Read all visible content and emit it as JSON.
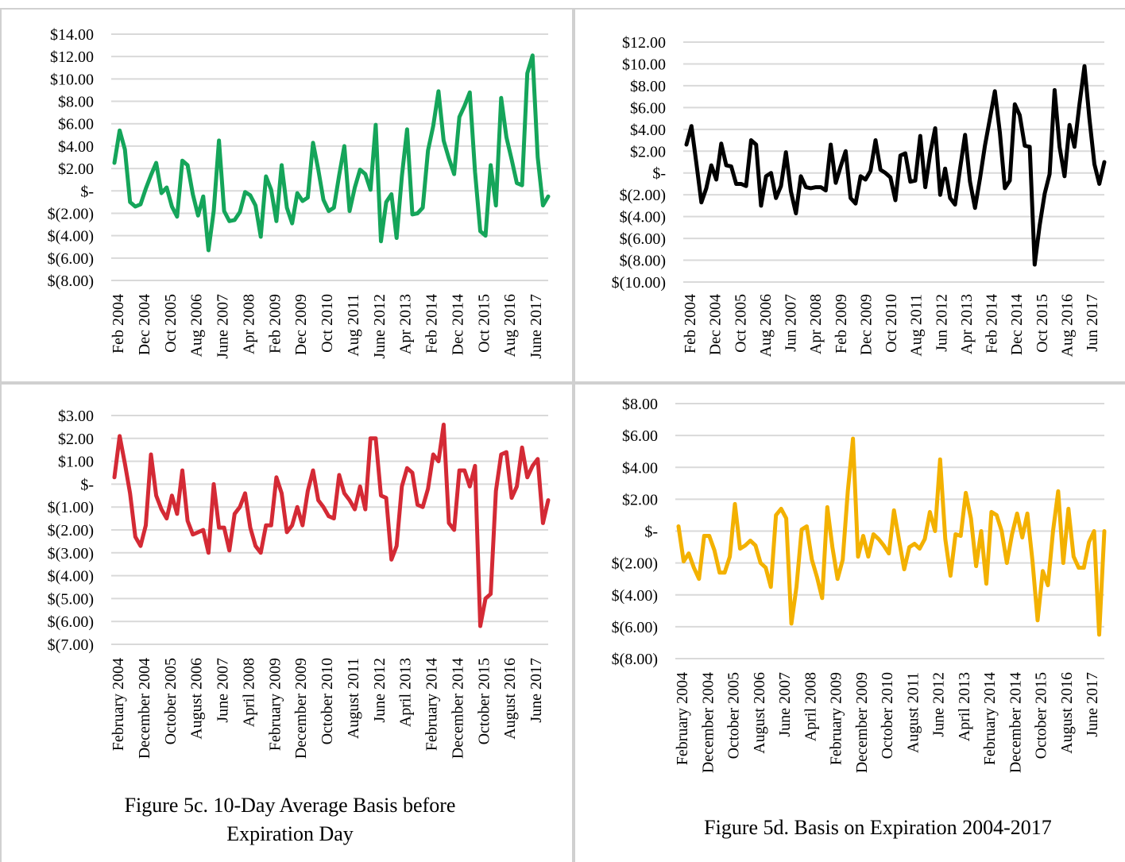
{
  "chart_data": [
    {
      "type": "line",
      "title": "",
      "xlabel": "",
      "ylabel": "",
      "color": "#15a55a",
      "ylim": [
        -8,
        14
      ],
      "y_ticks": [
        14,
        12,
        10,
        8,
        6,
        4,
        2,
        0,
        -2,
        -4,
        -6,
        -8
      ],
      "y_tick_labels": [
        "$14.00",
        "$12.00",
        "$10.00",
        "$8.00",
        "$6.00",
        "$4.00",
        "$2.00",
        "$-",
        "$(2.00)",
        "$(4.00)",
        "$(6.00)",
        "$(8.00)"
      ],
      "x_tick_labels": [
        "Feb 2004",
        "Dec 2004",
        "Oct 2005",
        "Aug 2006",
        "June 2007",
        "Apr 2008",
        "Feb 2009",
        "Dec 2009",
        "Oct 2010",
        "Aug 2011",
        "June 2012",
        "Apr 2013",
        "Feb 2014",
        "Dec 2014",
        "Oct 2015",
        "Aug 2016",
        "June 2017"
      ],
      "values": [
        2.5,
        5.4,
        3.7,
        -1.0,
        -1.4,
        -1.2,
        0.2,
        1.4,
        2.5,
        -0.2,
        0.3,
        -1.4,
        -2.3,
        2.7,
        2.3,
        -0.3,
        -2.2,
        -0.5,
        -5.3,
        -1.8,
        4.5,
        -1.8,
        -2.7,
        -2.6,
        -1.9,
        -0.1,
        -0.4,
        -1.3,
        -4.1,
        1.3,
        0.1,
        -2.7,
        2.3,
        -1.5,
        -2.9,
        -0.2,
        -0.9,
        -0.6,
        4.3,
        1.9,
        -0.8,
        -1.8,
        -1.5,
        1.4,
        4.0,
        -1.8,
        0.3,
        1.9,
        1.5,
        0.1,
        5.9,
        -4.5,
        -1.0,
        -0.3,
        -4.2,
        1.3,
        5.5,
        -2.1,
        -2.0,
        -1.5,
        3.6,
        5.8,
        8.9,
        4.5,
        2.9,
        1.5,
        6.6,
        7.6,
        8.8,
        1.7,
        -3.6,
        -4.0,
        2.3,
        -1.3,
        8.3,
        4.8,
        2.8,
        0.7,
        0.5,
        10.5,
        12.1,
        3.0,
        -1.3,
        -0.5
      ]
    },
    {
      "type": "line",
      "title": "",
      "xlabel": "",
      "ylabel": "",
      "color": "#000000",
      "ylim": [
        -10,
        12
      ],
      "y_ticks": [
        12,
        10,
        8,
        6,
        4,
        2,
        0,
        -2,
        -4,
        -6,
        -8,
        -10
      ],
      "y_tick_labels": [
        "$12.00",
        "$10.00",
        "$8.00",
        "$6.00",
        "$4.00",
        "$2.00",
        "$-",
        "$(2.00)",
        "$(4.00)",
        "$(6.00)",
        "$(8.00)",
        "$(10.00)"
      ],
      "x_tick_labels": [
        "Feb 2004",
        "Dec 2004",
        "Oct 2005",
        "Aug 2006",
        "Jun 2007",
        "Apr 2008",
        "Feb 2009",
        "Dec 2009",
        "Oct 2010",
        "Aug 2011",
        "Jun 2012",
        "Apr 2013",
        "Feb 2014",
        "Dec 2014",
        "Oct 2015",
        "Aug 2016",
        "Jun 2017"
      ],
      "values": [
        2.6,
        4.3,
        0.9,
        -2.7,
        -1.4,
        0.7,
        -0.6,
        2.7,
        0.7,
        0.6,
        -1.0,
        -1.0,
        -1.2,
        3.0,
        2.6,
        -3.0,
        -0.3,
        0.0,
        -2.3,
        -1.2,
        1.9,
        -1.7,
        -3.7,
        -0.3,
        -1.3,
        -1.4,
        -1.3,
        -1.3,
        -1.6,
        2.6,
        -0.9,
        0.6,
        2.0,
        -2.3,
        -2.8,
        -0.3,
        -0.6,
        0.2,
        3.0,
        0.3,
        0.0,
        -0.4,
        -2.5,
        1.6,
        1.8,
        -0.8,
        -0.7,
        3.4,
        -1.3,
        1.8,
        4.1,
        -2.0,
        0.4,
        -2.3,
        -2.9,
        0.4,
        3.5,
        -0.8,
        -3.2,
        -0.5,
        2.5,
        5.0,
        7.5,
        3.7,
        -1.4,
        -0.7,
        6.3,
        5.3,
        2.5,
        2.4,
        -8.4,
        -4.8,
        -1.9,
        -0.1,
        7.6,
        2.4,
        -0.3,
        4.4,
        2.4,
        6.3,
        9.8,
        5.0,
        0.8,
        -1.0,
        1.0
      ]
    },
    {
      "type": "line",
      "title": "",
      "xlabel": "",
      "ylabel": "",
      "color": "#d42a35",
      "ylim": [
        -7,
        3
      ],
      "y_ticks": [
        3,
        2,
        1,
        0,
        -1,
        -2,
        -3,
        -4,
        -5,
        -6,
        -7
      ],
      "y_tick_labels": [
        "$3.00",
        "$2.00",
        "$1.00",
        "$-",
        "$(1.00)",
        "$(2.00)",
        "$(3.00)",
        "$(4.00)",
        "$(5.00)",
        "$(6.00)",
        "$(7.00)"
      ],
      "x_tick_labels": [
        "February 2004",
        "December 2004",
        "October 2005",
        "August 2006",
        "June 2007",
        "April 2008",
        "February 2009",
        "December 2009",
        "October 2010",
        "August 2011",
        "June 2012",
        "April 2013",
        "February 2014",
        "December 2014",
        "October 2015",
        "August 2016",
        "June 2017"
      ],
      "values": [
        0.3,
        2.1,
        0.9,
        -0.4,
        -2.3,
        -2.7,
        -1.8,
        1.3,
        -0.5,
        -1.1,
        -1.5,
        -0.5,
        -1.3,
        0.6,
        -1.6,
        -2.2,
        -2.1,
        -2.0,
        -3.0,
        0.0,
        -1.9,
        -1.9,
        -2.9,
        -1.3,
        -1.0,
        -0.4,
        -1.9,
        -2.7,
        -3.0,
        -1.8,
        -1.8,
        0.3,
        -0.4,
        -2.1,
        -1.8,
        -1.0,
        -1.8,
        -0.3,
        0.6,
        -0.7,
        -1.0,
        -1.4,
        -1.5,
        0.4,
        -0.4,
        -0.7,
        -1.1,
        -0.1,
        -1.1,
        2.0,
        2.0,
        -0.5,
        -0.6,
        -3.3,
        -2.7,
        -0.1,
        0.7,
        0.5,
        -0.9,
        -1.0,
        -0.2,
        1.3,
        1.0,
        2.6,
        -1.7,
        -2.0,
        0.6,
        0.6,
        -0.1,
        0.8,
        -6.2,
        -5.0,
        -4.8,
        -0.3,
        1.3,
        1.4,
        -0.6,
        -0.1,
        1.6,
        0.3,
        0.8,
        1.1,
        -1.7,
        -0.7
      ]
    },
    {
      "type": "line",
      "title": "",
      "xlabel": "",
      "ylabel": "",
      "color": "#f3b100",
      "ylim": [
        -8,
        8
      ],
      "y_ticks": [
        8,
        6,
        4,
        2,
        0,
        -2,
        -4,
        -6,
        -8
      ],
      "y_tick_labels": [
        "$8.00",
        "$6.00",
        "$4.00",
        "$2.00",
        "$-",
        "$(2.00)",
        "$(4.00)",
        "$(6.00)",
        "$(8.00)"
      ],
      "x_tick_labels": [
        "February 2004",
        "December 2004",
        "October 2005",
        "August 2006",
        "June 2007",
        "April 2008",
        "February 2009",
        "December 2009",
        "October 2010",
        "August 2011",
        "June 2012",
        "April 2013",
        "February 2014",
        "December 2014",
        "October 2015",
        "August 2016",
        "June 2017"
      ],
      "values": [
        0.3,
        -1.9,
        -1.4,
        -2.3,
        -3.0,
        -0.3,
        -0.3,
        -1.2,
        -2.6,
        -2.6,
        -1.6,
        1.7,
        -1.1,
        -0.9,
        -0.6,
        -0.9,
        -2.0,
        -2.3,
        -3.5,
        1.0,
        1.4,
        0.8,
        -5.8,
        -3.5,
        0.1,
        0.3,
        -1.8,
        -2.9,
        -4.2,
        1.5,
        -1.0,
        -3.0,
        -1.8,
        2.5,
        5.8,
        -1.6,
        -0.3,
        -1.6,
        -0.2,
        -0.5,
        -0.9,
        -1.4,
        1.3,
        -0.6,
        -2.4,
        -1.0,
        -0.8,
        -1.1,
        -0.5,
        1.2,
        0.0,
        4.5,
        -0.5,
        -2.8,
        -0.2,
        -0.3,
        2.4,
        0.8,
        -2.2,
        0.0,
        -3.3,
        1.2,
        1.0,
        0.0,
        -2.0,
        -0.2,
        1.1,
        -0.4,
        1.1,
        -1.9,
        -5.6,
        -2.5,
        -3.4,
        0.0,
        2.5,
        -2.0,
        1.4,
        -1.6,
        -2.3,
        -2.3,
        -0.7,
        0.0,
        -6.5,
        0.0
      ]
    }
  ],
  "captions": {
    "fig5c_line1": "Figure 5c. 10-Day Average Basis before",
    "fig5c_line2": "Expiration Day",
    "fig5d": "Figure 5d. Basis on Expiration 2004-2017"
  }
}
